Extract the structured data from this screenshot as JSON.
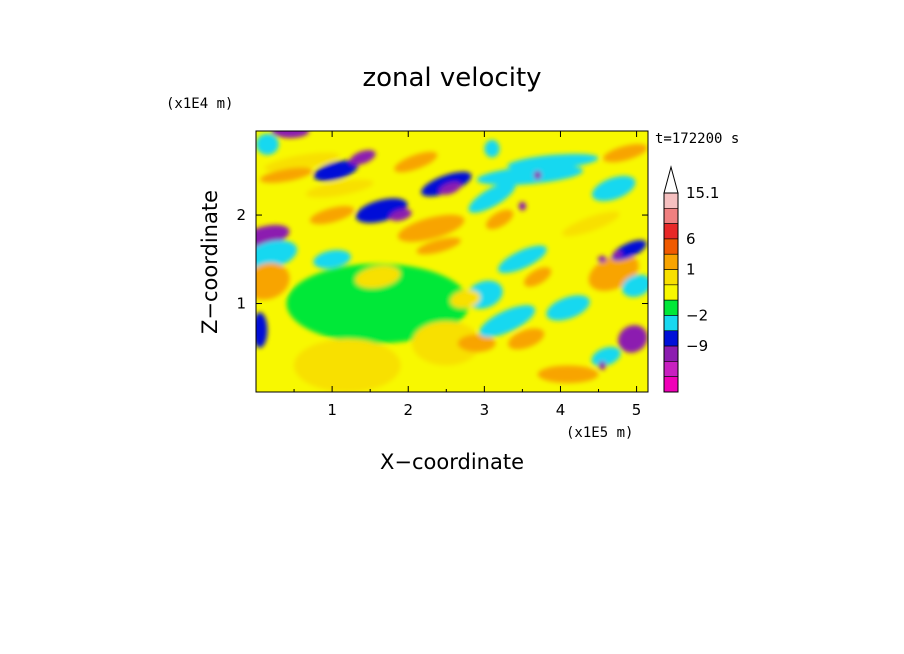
{
  "chart_data": {
    "type": "heatmap",
    "title": "zonal velocity",
    "xlabel": "X−coordinate",
    "ylabel": "Z−coordinate",
    "x_unit": "(x1E5 m)",
    "y_unit": "(x1E4 m)",
    "time_label": "t=172200 s",
    "xlim": [
      0,
      5.15
    ],
    "ylim": [
      0,
      2.95
    ],
    "x_ticks": [
      1,
      2,
      3,
      4,
      5
    ],
    "y_ticks": [
      1,
      2
    ],
    "x_tick_labels": [
      "1",
      "2",
      "3",
      "4",
      "5"
    ],
    "y_tick_labels": [
      "1",
      "2"
    ],
    "colorbar": {
      "levels_top_to_bottom": [
        15.1,
        12,
        9,
        6,
        3,
        1,
        0,
        -1,
        -2,
        -5,
        -9,
        -13
      ],
      "labels": [
        "15.1",
        "6",
        "1",
        "−2",
        "−9"
      ],
      "colors_top_to_bottom": [
        "#f6c0c0",
        "#f08080",
        "#e82828",
        "#f05a00",
        "#f8a400",
        "#f8e000",
        "#f8f800",
        "#00e838",
        "#18d8f0",
        "#0010d8",
        "#8c1cb0",
        "#c820c0",
        "#f000b8"
      ],
      "extend_max_arrow": true
    },
    "background_value_color": "#f8f800",
    "features": [
      {
        "x": 0.45,
        "z": 2.95,
        "v": -6,
        "rx": 0.25,
        "rz": 0.08,
        "rot": 0
      },
      {
        "x": 0.15,
        "z": 2.8,
        "v": -2,
        "rx": 0.15,
        "rz": 0.12,
        "rot": 0
      },
      {
        "x": 0.6,
        "z": 2.6,
        "v": 2,
        "rx": 0.5,
        "rz": 0.08,
        "rot": -10
      },
      {
        "x": 0.4,
        "z": 2.45,
        "v": 4,
        "rx": 0.35,
        "rz": 0.07,
        "rot": -10
      },
      {
        "x": 1.05,
        "z": 2.5,
        "v": -5,
        "rx": 0.3,
        "rz": 0.1,
        "rot": -15
      },
      {
        "x": 1.4,
        "z": 2.65,
        "v": -7,
        "rx": 0.18,
        "rz": 0.07,
        "rot": -20
      },
      {
        "x": 1.1,
        "z": 2.3,
        "v": 2,
        "rx": 0.45,
        "rz": 0.08,
        "rot": -10
      },
      {
        "x": 1.0,
        "z": 2.0,
        "v": 4,
        "rx": 0.3,
        "rz": 0.08,
        "rot": -15
      },
      {
        "x": 1.65,
        "z": 2.05,
        "v": -5,
        "rx": 0.35,
        "rz": 0.12,
        "rot": -15
      },
      {
        "x": 1.9,
        "z": 2.0,
        "v": -9,
        "rx": 0.15,
        "rz": 0.06,
        "rot": -15
      },
      {
        "x": 2.3,
        "z": 1.85,
        "v": 3,
        "rx": 0.45,
        "rz": 0.12,
        "rot": -15
      },
      {
        "x": 2.4,
        "z": 1.65,
        "v": 5,
        "rx": 0.3,
        "rz": 0.07,
        "rot": -15
      },
      {
        "x": 2.5,
        "z": 2.35,
        "v": -5,
        "rx": 0.35,
        "rz": 0.1,
        "rot": -20
      },
      {
        "x": 2.55,
        "z": 2.3,
        "v": -9,
        "rx": 0.15,
        "rz": 0.06,
        "rot": -20
      },
      {
        "x": 0.1,
        "z": 1.75,
        "v": -6,
        "rx": 0.35,
        "rz": 0.12,
        "rot": -15
      },
      {
        "x": 0.2,
        "z": 1.55,
        "v": -2,
        "rx": 0.35,
        "rz": 0.15,
        "rot": -15
      },
      {
        "x": 1.0,
        "z": 1.5,
        "v": -2,
        "rx": 0.25,
        "rz": 0.1,
        "rot": -10
      },
      {
        "x": 0.15,
        "z": 1.25,
        "v": 3,
        "rx": 0.3,
        "rz": 0.2,
        "rot": -20
      },
      {
        "x": 1.6,
        "z": 1.0,
        "v": -1,
        "rx": 1.2,
        "rz": 0.45,
        "rot": 0
      },
      {
        "x": 1.2,
        "z": 0.3,
        "v": 1,
        "rx": 0.7,
        "rz": 0.3,
        "rot": 0
      },
      {
        "x": 2.5,
        "z": 0.55,
        "v": 1,
        "rx": 0.45,
        "rz": 0.25,
        "rot": 0
      },
      {
        "x": 2.9,
        "z": 0.55,
        "v": 4,
        "rx": 0.25,
        "rz": 0.1,
        "rot": 0
      },
      {
        "x": 0.05,
        "z": 0.7,
        "v": -5,
        "rx": 0.1,
        "rz": 0.2,
        "rot": 0
      },
      {
        "x": 2.1,
        "z": 2.6,
        "v": 3,
        "rx": 0.3,
        "rz": 0.08,
        "rot": -20
      },
      {
        "x": 3.1,
        "z": 2.2,
        "v": -2,
        "rx": 0.35,
        "rz": 0.1,
        "rot": -30
      },
      {
        "x": 3.0,
        "z": 1.1,
        "v": -2,
        "rx": 0.25,
        "rz": 0.15,
        "rot": -20
      },
      {
        "x": 3.3,
        "z": 0.8,
        "v": -2,
        "rx": 0.4,
        "rz": 0.12,
        "rot": -25
      },
      {
        "x": 3.5,
        "z": 1.5,
        "v": -2,
        "rx": 0.35,
        "rz": 0.1,
        "rot": -25
      },
      {
        "x": 3.6,
        "z": 2.45,
        "v": -2,
        "rx": 0.7,
        "rz": 0.1,
        "rot": -5
      },
      {
        "x": 3.9,
        "z": 2.6,
        "v": -2,
        "rx": 0.6,
        "rz": 0.08,
        "rot": -5
      },
      {
        "x": 3.2,
        "z": 1.95,
        "v": 3,
        "rx": 0.2,
        "rz": 0.08,
        "rot": -30
      },
      {
        "x": 3.7,
        "z": 1.3,
        "v": 3,
        "rx": 0.2,
        "rz": 0.08,
        "rot": -30
      },
      {
        "x": 3.55,
        "z": 0.6,
        "v": 3,
        "rx": 0.25,
        "rz": 0.1,
        "rot": -20
      },
      {
        "x": 4.1,
        "z": 0.95,
        "v": -2,
        "rx": 0.3,
        "rz": 0.12,
        "rot": -20
      },
      {
        "x": 4.7,
        "z": 1.35,
        "v": 4,
        "rx": 0.35,
        "rz": 0.18,
        "rot": -25
      },
      {
        "x": 4.9,
        "z": 1.6,
        "v": -5,
        "rx": 0.25,
        "rz": 0.08,
        "rot": -25
      },
      {
        "x": 5.0,
        "z": 1.2,
        "v": -2,
        "rx": 0.2,
        "rz": 0.12,
        "rot": -20
      },
      {
        "x": 4.95,
        "z": 0.6,
        "v": -6,
        "rx": 0.2,
        "rz": 0.15,
        "rot": -30
      },
      {
        "x": 4.6,
        "z": 0.4,
        "v": -2,
        "rx": 0.2,
        "rz": 0.1,
        "rot": -20
      },
      {
        "x": 4.55,
        "z": 0.3,
        "v": -9,
        "rx": 0.05,
        "rz": 0.05,
        "rot": 0
      },
      {
        "x": 4.1,
        "z": 0.2,
        "v": 3,
        "rx": 0.4,
        "rz": 0.1,
        "rot": 0
      },
      {
        "x": 4.7,
        "z": 2.3,
        "v": -2,
        "rx": 0.3,
        "rz": 0.12,
        "rot": -20
      },
      {
        "x": 4.85,
        "z": 2.7,
        "v": 3,
        "rx": 0.3,
        "rz": 0.08,
        "rot": -15
      },
      {
        "x": 4.4,
        "z": 1.9,
        "v": 2,
        "rx": 0.4,
        "rz": 0.08,
        "rot": -20
      },
      {
        "x": 3.5,
        "z": 2.1,
        "v": -6,
        "rx": 0.05,
        "rz": 0.05,
        "rot": 0
      },
      {
        "x": 3.7,
        "z": 2.45,
        "v": -6,
        "rx": 0.05,
        "rz": 0.05,
        "rot": 0
      },
      {
        "x": 4.55,
        "z": 1.5,
        "v": -6,
        "rx": 0.06,
        "rz": 0.04,
        "rot": 0
      },
      {
        "x": 4.75,
        "z": 1.55,
        "v": -6,
        "rx": 0.06,
        "rz": 0.04,
        "rot": 0
      },
      {
        "x": 3.1,
        "z": 2.75,
        "v": -2,
        "rx": 0.1,
        "rz": 0.1,
        "rot": 0
      },
      {
        "x": 1.6,
        "z": 1.3,
        "v": 1,
        "rx": 0.3,
        "rz": 0.12,
        "rot": -10
      },
      {
        "x": 2.75,
        "z": 1.05,
        "v": 2,
        "rx": 0.2,
        "rz": 0.1,
        "rot": -10
      }
    ]
  }
}
